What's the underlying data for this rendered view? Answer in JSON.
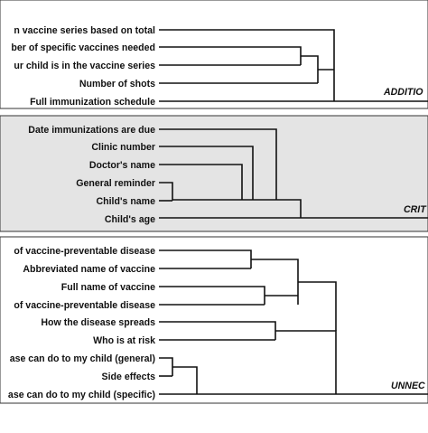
{
  "colors": {
    "background": "#ffffff",
    "critical_panel_fill": "#e4e4e4",
    "line": "#111111"
  },
  "groups": [
    {
      "label": "ADDITIO",
      "items": [
        "n vaccine series based on total",
        "ber of specific vaccines needed",
        "ur child is in the vaccine series",
        "Number of shots",
        "Full immunization schedule"
      ]
    },
    {
      "label": "CRIT",
      "items": [
        "Date immunizations are due",
        "Clinic number",
        "Doctor's name",
        "General reminder",
        "Child's name",
        "Child's age"
      ]
    },
    {
      "label": "UNNEC",
      "items": [
        "of vaccine-preventable disease",
        "Abbreviated name of vaccine",
        "Full name of vaccine",
        "of vaccine-preventable disease",
        "How the disease spreads",
        "Who is at risk",
        "ase can do to my child (general)",
        "Side effects",
        "ase can do to my child (specific)"
      ]
    }
  ]
}
